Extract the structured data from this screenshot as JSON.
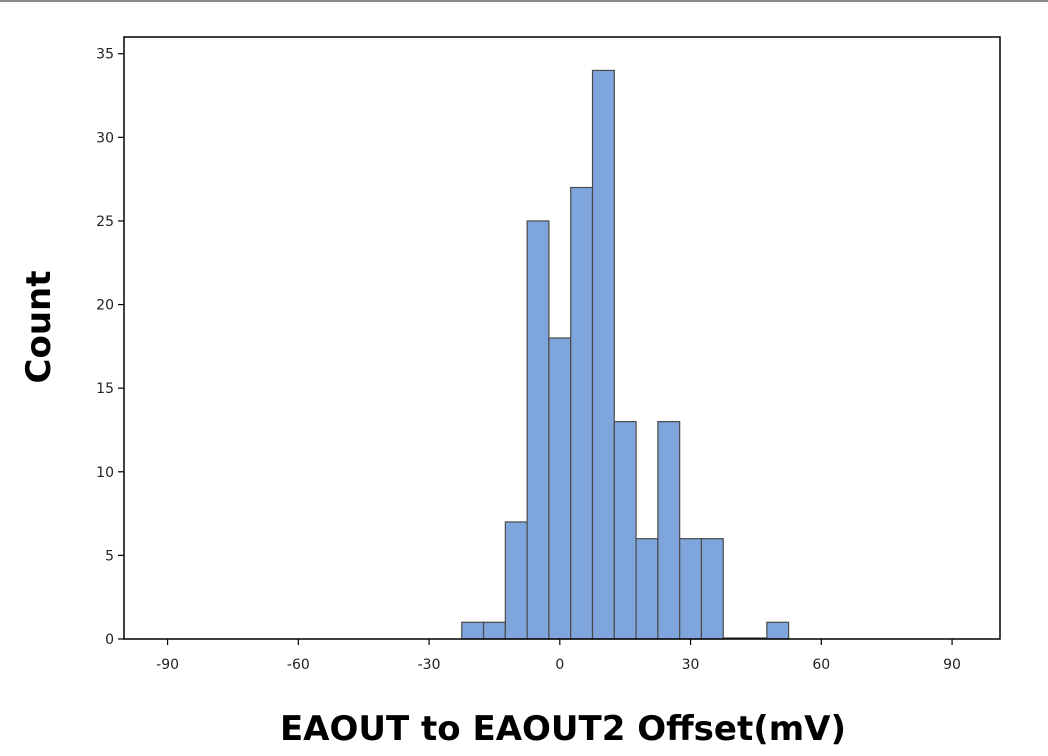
{
  "chart_data": {
    "type": "bar",
    "title": "",
    "xlabel": "EAOUT to EAOUT2 Offset(mV)",
    "ylabel": "Count",
    "xlim": [
      -100,
      101
    ],
    "ylim": [
      0,
      36
    ],
    "xticks": [
      -90,
      -60,
      -30,
      0,
      30,
      60,
      90
    ],
    "yticks": [
      0,
      5,
      10,
      15,
      20,
      25,
      30,
      35
    ],
    "bin_width": 5,
    "bins": [
      {
        "x0": -22.5,
        "x1": -17.5,
        "count": 1
      },
      {
        "x0": -17.5,
        "x1": -12.5,
        "count": 1
      },
      {
        "x0": -12.5,
        "x1": -7.5,
        "count": 7
      },
      {
        "x0": -7.5,
        "x1": -2.5,
        "count": 25
      },
      {
        "x0": -2.5,
        "x1": 2.5,
        "count": 18
      },
      {
        "x0": 2.5,
        "x1": 7.5,
        "count": 27
      },
      {
        "x0": 7.5,
        "x1": 12.5,
        "count": 34
      },
      {
        "x0": 12.5,
        "x1": 17.5,
        "count": 13
      },
      {
        "x0": 17.5,
        "x1": 22.5,
        "count": 6
      },
      {
        "x0": 22.5,
        "x1": 27.5,
        "count": 13
      },
      {
        "x0": 27.5,
        "x1": 32.5,
        "count": 6
      },
      {
        "x0": 32.5,
        "x1": 37.5,
        "count": 6
      },
      {
        "x0": 37.5,
        "x1": 42.5,
        "count": 0
      },
      {
        "x0": 42.5,
        "x1": 47.5,
        "count": 0
      },
      {
        "x0": 47.5,
        "x1": 52.5,
        "count": 1
      }
    ],
    "grid": false,
    "legend": "none",
    "bar_color": "#7ea6dc",
    "bar_edge_color": "#4a4a4a"
  }
}
